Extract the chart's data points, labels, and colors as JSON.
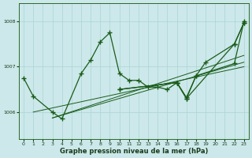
{
  "xlabel": "Graphe pression niveau de la mer (hPa)",
  "background_color": "#cce8ea",
  "line_color": "#1a5c1a",
  "grid_color": "#aad4d4",
  "xlim": [
    -0.5,
    23.5
  ],
  "ylim": [
    1005.4,
    1008.4
  ],
  "yticks": [
    1006,
    1007,
    1008
  ],
  "xticks": [
    0,
    1,
    2,
    3,
    4,
    5,
    6,
    7,
    8,
    9,
    10,
    11,
    12,
    13,
    14,
    15,
    16,
    17,
    18,
    19,
    20,
    21,
    22,
    23
  ],
  "main_x": [
    0,
    1,
    3,
    4,
    6,
    7,
    8,
    9,
    10,
    11,
    12,
    13,
    14,
    15,
    16,
    17,
    18,
    19,
    22,
    23
  ],
  "main_y": [
    1006.75,
    1006.35,
    1006.0,
    1005.85,
    1006.85,
    1007.15,
    1007.55,
    1007.75,
    1006.85,
    1006.7,
    1006.7,
    1006.55,
    1006.55,
    1006.5,
    1006.65,
    1006.3,
    1006.8,
    1007.1,
    1007.5,
    1007.97
  ],
  "trend1": {
    "x": [
      1,
      23
    ],
    "y": [
      1006.0,
      1007.0
    ]
  },
  "trend2": {
    "x": [
      3,
      23
    ],
    "y": [
      1005.87,
      1007.1
    ]
  },
  "trend3": {
    "x": [
      3,
      23
    ],
    "y": [
      1005.87,
      1007.25
    ]
  },
  "diag1_x": [
    10,
    16,
    17,
    22,
    23
  ],
  "diag1_y": [
    1006.5,
    1006.65,
    1006.3,
    1007.5,
    1007.97
  ],
  "diag2_x": [
    10,
    16,
    17,
    18,
    22,
    23
  ],
  "diag2_y": [
    1006.5,
    1006.65,
    1006.32,
    1006.8,
    1007.07,
    1008.0
  ]
}
